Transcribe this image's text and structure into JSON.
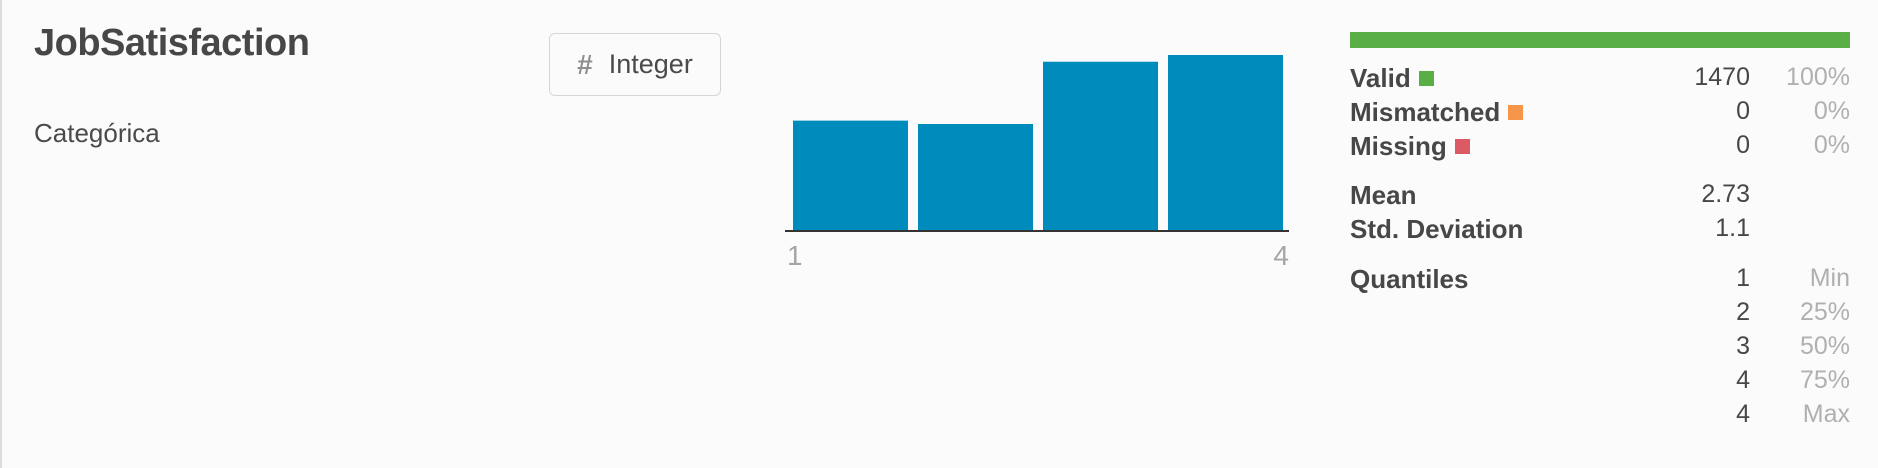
{
  "column": {
    "name": "JobSatisfaction",
    "kind": "Categórica",
    "type_icon": "hash-icon",
    "type_label": "Integer"
  },
  "histogram": {
    "min_label": "1",
    "max_label": "4",
    "bar_color": "#008bbd",
    "ymax_fraction_basis": "relative"
  },
  "chart_data": {
    "type": "bar",
    "categories": [
      "1",
      "2",
      "3",
      "4"
    ],
    "values": [
      0.65,
      0.63,
      1.0,
      1.04
    ],
    "xlabel": "",
    "ylabel": ""
  },
  "stats": {
    "valid_color": "#59ae45",
    "mismatched_color": "#f5964a",
    "missing_color": "#dc5a64",
    "rows": {
      "valid": {
        "label": "Valid",
        "value": "1470",
        "pct": "100%"
      },
      "mismatched": {
        "label": "Mismatched",
        "value": "0",
        "pct": "0%"
      },
      "missing": {
        "label": "Missing",
        "value": "0",
        "pct": "0%"
      },
      "mean": {
        "label": "Mean",
        "value": "2.73"
      },
      "std": {
        "label": "Std. Deviation",
        "value": "1.1"
      },
      "q_min": {
        "label": "Quantiles",
        "value": "1",
        "pct": "Min"
      },
      "q_25": {
        "value": "2",
        "pct": "25%"
      },
      "q_50": {
        "value": "3",
        "pct": "50%"
      },
      "q_75": {
        "value": "4",
        "pct": "75%"
      },
      "q_max": {
        "value": "4",
        "pct": "Max"
      }
    }
  }
}
